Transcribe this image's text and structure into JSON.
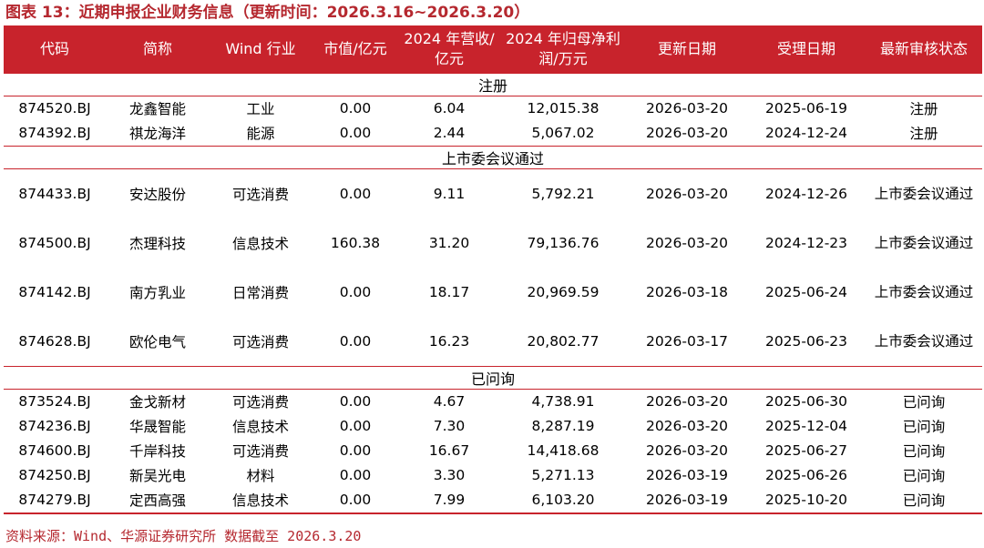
{
  "title": "图表 13：近期申报企业财务信息（更新时间：2026.3.16~2026.3.20）",
  "headers": [
    "代码",
    "简称",
    "Wind 行业",
    "市值/亿元",
    "2024 年营收/亿元",
    "2024 年归母净利润/万元",
    "更新日期",
    "受理日期",
    "最新审核状态"
  ],
  "groups": [
    {
      "label": "注册",
      "rows": [
        [
          "874520.BJ",
          "龙鑫智能",
          "工业",
          "0.00",
          "6.04",
          "12,015.38",
          "2026-03-20",
          "2025-06-19",
          "注册"
        ],
        [
          "874392.BJ",
          "祺龙海洋",
          "能源",
          "0.00",
          "2.44",
          "5,067.02",
          "2026-03-20",
          "2024-12-24",
          "注册"
        ]
      ]
    },
    {
      "label": "上市委会议通过",
      "rows": [
        [
          "874433.BJ",
          "安达股份",
          "可选消费",
          "0.00",
          "9.11",
          "5,792.21",
          "2026-03-20",
          "2024-12-26",
          "上市委会议通过"
        ],
        [
          "874500.BJ",
          "杰理科技",
          "信息技术",
          "160.38",
          "31.20",
          "79,136.76",
          "2026-03-20",
          "2024-12-23",
          "上市委会议通过"
        ],
        [
          "874142.BJ",
          "南方乳业",
          "日常消费",
          "0.00",
          "18.17",
          "20,969.59",
          "2026-03-18",
          "2025-06-24",
          "上市委会议通过"
        ],
        [
          "874628.BJ",
          "欧伦电气",
          "可选消费",
          "0.00",
          "16.23",
          "20,802.77",
          "2026-03-17",
          "2025-06-23",
          "上市委会议通过"
        ]
      ]
    },
    {
      "label": "已问询",
      "rows": [
        [
          "873524.BJ",
          "金戈新材",
          "可选消费",
          "0.00",
          "4.67",
          "4,738.91",
          "2026-03-20",
          "2025-06-30",
          "已问询"
        ],
        [
          "874236.BJ",
          "华晟智能",
          "信息技术",
          "0.00",
          "7.30",
          "8,287.19",
          "2026-03-20",
          "2025-12-04",
          "已问询"
        ],
        [
          "874600.BJ",
          "千岸科技",
          "可选消费",
          "0.00",
          "16.67",
          "14,418.68",
          "2026-03-20",
          "2025-06-27",
          "已问询"
        ],
        [
          "874250.BJ",
          "新吴光电",
          "材料",
          "0.00",
          "3.30",
          "5,271.13",
          "2026-03-19",
          "2025-06-26",
          "已问询"
        ],
        [
          "874279.BJ",
          "定西高强",
          "信息技术",
          "0.00",
          "7.99",
          "6,103.20",
          "2026-03-19",
          "2025-10-20",
          "已问询"
        ]
      ]
    }
  ],
  "footer": "资料来源：Wind、华源证券研究所 数据截至 2026.3.20"
}
